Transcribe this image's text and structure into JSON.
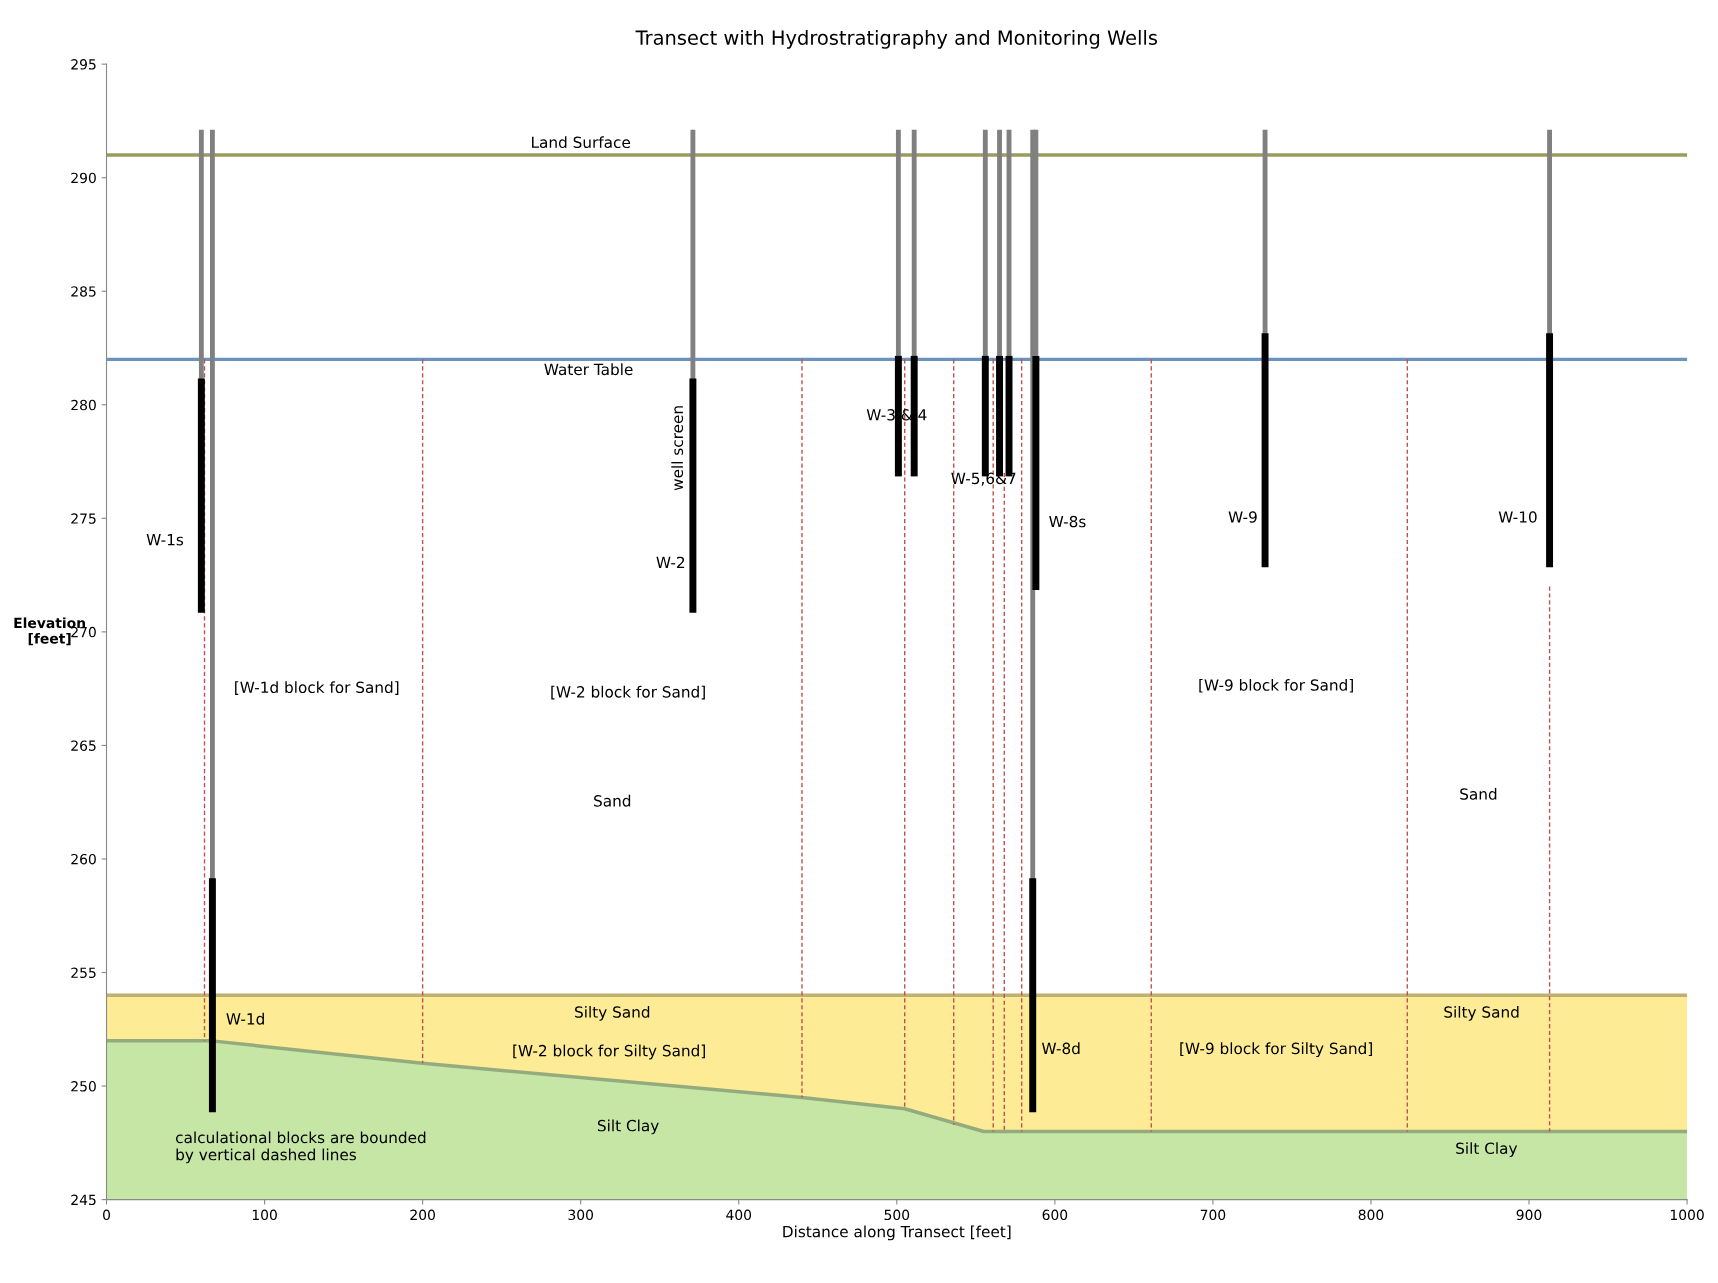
{
  "chart_data": {
    "type": "line",
    "title": "Transect with Hydrostratigraphy and Monitoring Wells",
    "xlabel": "Distance along Transect [feet]",
    "ylabel": "Elevation\n[feet]",
    "xlim": [
      0,
      1000
    ],
    "xticks": [
      0,
      100,
      200,
      300,
      400,
      500,
      600,
      700,
      800,
      900,
      1000
    ],
    "ylim": [
      245,
      295
    ],
    "yticks": [
      245,
      250,
      255,
      260,
      265,
      270,
      275,
      280,
      285,
      290,
      295
    ],
    "grid": false,
    "legend": false,
    "series": [
      {
        "type": "area",
        "color": "#fdeb95",
        "x": [
          0,
          1000
        ],
        "values": [
          254,
          254
        ]
      },
      {
        "type": "area",
        "color": "#c6e6a6",
        "x": [
          0,
          65,
          200,
          440,
          505,
          555,
          1000
        ],
        "values": [
          252,
          252,
          251,
          249.5,
          249,
          248,
          248
        ]
      },
      {
        "color": "#9b9b5f",
        "x": [
          0,
          1000
        ],
        "values": [
          291,
          291
        ]
      },
      {
        "color": "#6b93bf",
        "x": [
          0,
          1000
        ],
        "values": [
          282,
          282
        ]
      },
      {
        "color": "#c0504d",
        "line_style": "dashed",
        "x": [
          62,
          62
        ],
        "values": [
          282,
          252
        ]
      },
      {
        "color": "#c0504d",
        "line_style": "dashed",
        "x": [
          200,
          200
        ],
        "values": [
          282,
          251
        ]
      },
      {
        "color": "#c0504d",
        "line_style": "dashed",
        "x": [
          440,
          440
        ],
        "values": [
          282,
          249.5
        ]
      },
      {
        "color": "#c0504d",
        "line_style": "dashed",
        "x": [
          505,
          505
        ],
        "values": [
          282,
          249
        ]
      },
      {
        "color": "#c0504d",
        "line_style": "dashed",
        "x": [
          536,
          536
        ],
        "values": [
          282,
          248.3
        ]
      },
      {
        "color": "#c0504d",
        "line_style": "dashed",
        "x": [
          561,
          561
        ],
        "values": [
          282,
          248
        ]
      },
      {
        "color": "#c0504d",
        "line_style": "dashed",
        "x": [
          568,
          568
        ],
        "values": [
          277,
          248
        ]
      },
      {
        "color": "#c0504d",
        "line_style": "dashed",
        "x": [
          579,
          579
        ],
        "values": [
          282,
          248
        ]
      },
      {
        "color": "#c0504d",
        "line_style": "dashed",
        "x": [
          661,
          661
        ],
        "values": [
          282,
          248
        ]
      },
      {
        "color": "#c0504d",
        "line_style": "dashed",
        "x": [
          823,
          823
        ],
        "values": [
          282,
          248
        ]
      },
      {
        "color": "#c0504d",
        "line_style": "dashed",
        "x": [
          913,
          913
        ],
        "values": [
          272,
          248
        ]
      },
      {
        "color": "#808080",
        "x": [
          60,
          60
        ],
        "values": [
          292,
          281
        ]
      },
      {
        "color": "#000000",
        "x": [
          60,
          60
        ],
        "values": [
          281,
          271
        ]
      },
      {
        "color": "#808080",
        "x": [
          67,
          67
        ],
        "values": [
          292,
          259
        ]
      },
      {
        "color": "#000000",
        "x": [
          67,
          67
        ],
        "values": [
          259,
          249
        ]
      },
      {
        "color": "#808080",
        "x": [
          371,
          371
        ],
        "values": [
          292,
          281
        ]
      },
      {
        "color": "#000000",
        "x": [
          371,
          371
        ],
        "values": [
          281,
          271
        ]
      },
      {
        "color": "#808080",
        "x": [
          501,
          501
        ],
        "values": [
          292,
          282
        ]
      },
      {
        "color": "#000000",
        "x": [
          501,
          501
        ],
        "values": [
          282,
          277
        ]
      },
      {
        "color": "#808080",
        "x": [
          511,
          511
        ],
        "values": [
          292,
          282
        ]
      },
      {
        "color": "#000000",
        "x": [
          511,
          511
        ],
        "values": [
          282,
          277
        ]
      },
      {
        "color": "#808080",
        "x": [
          556,
          556
        ],
        "values": [
          292,
          282
        ]
      },
      {
        "color": "#000000",
        "x": [
          556,
          556
        ],
        "values": [
          282,
          277
        ]
      },
      {
        "color": "#808080",
        "x": [
          565,
          565
        ],
        "values": [
          292,
          282
        ]
      },
      {
        "color": "#000000",
        "x": [
          565,
          565
        ],
        "values": [
          282,
          277
        ]
      },
      {
        "color": "#808080",
        "x": [
          571,
          571
        ],
        "values": [
          292,
          282
        ]
      },
      {
        "color": "#000000",
        "x": [
          571,
          571
        ],
        "values": [
          282,
          277
        ]
      },
      {
        "color": "#808080",
        "x": [
          586,
          586
        ],
        "values": [
          292,
          259
        ]
      },
      {
        "color": "#000000",
        "x": [
          586,
          586
        ],
        "values": [
          259,
          249
        ]
      },
      {
        "color": "#808080",
        "x": [
          588,
          588
        ],
        "values": [
          292,
          282
        ]
      },
      {
        "color": "#000000",
        "x": [
          588,
          588
        ],
        "values": [
          282,
          272
        ]
      },
      {
        "color": "#808080",
        "x": [
          733,
          733
        ],
        "values": [
          292,
          283
        ]
      },
      {
        "color": "#000000",
        "x": [
          733,
          733
        ],
        "values": [
          283,
          273
        ]
      },
      {
        "color": "#808080",
        "x": [
          913,
          913
        ],
        "values": [
          292,
          283
        ]
      },
      {
        "color": "#000000",
        "x": [
          913,
          913
        ],
        "values": [
          283,
          273
        ]
      }
    ],
    "annotations": [
      "Land Surface",
      "Water Table",
      "W-1s",
      "well screen",
      "W-2",
      "W-3 & 4",
      "W-5,6&7",
      "W-8s",
      "W-9",
      "W-10",
      "[W-1d block for Sand]",
      "[W-2 block for Sand]",
      "Sand",
      "[W-9 block for Sand]",
      "Sand",
      "W-1d",
      "Silty Sand",
      "[W-2 block for Silty Sand]",
      "W-8d",
      "[W-9 block for Silty Sand]",
      "Silty Sand",
      "Silt Clay",
      "Silt Clay",
      "calculational blocks are bounded\nby vertical dashed lines"
    ]
  }
}
